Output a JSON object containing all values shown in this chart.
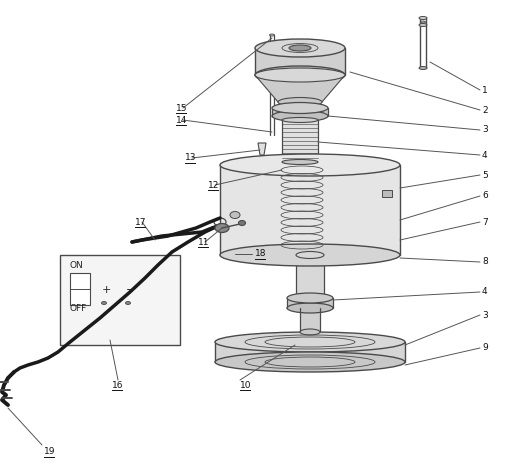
{
  "bg_color": "#ffffff",
  "lc": "#4a4a4a",
  "figsize": [
    5.14,
    4.74
  ],
  "dpi": 100
}
